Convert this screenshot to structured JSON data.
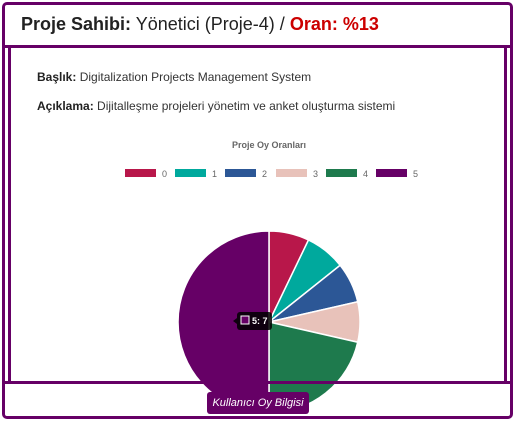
{
  "header": {
    "owner_label": "Proje Sahibi:",
    "owner_value": "Yönetici (Proje-4)",
    "separator": "/",
    "ratio_text": "Oran: %13"
  },
  "project": {
    "title_label": "Başlık:",
    "title_value": "Digitalization Projects Management System",
    "description_label": "Açıklama:",
    "description_value": "Dijitalleşme projeleri yönetim ve anket oluşturma sistemi"
  },
  "chart_data": {
    "type": "pie",
    "title": "Proje Oy Oranları",
    "legend_position": "top",
    "categories": [
      "0",
      "1",
      "2",
      "3",
      "4",
      "5"
    ],
    "values": [
      1,
      1,
      1,
      1,
      3,
      7
    ],
    "colors": [
      "#b8174a",
      "#00a99d",
      "#2c5796",
      "#e8c2ba",
      "#1e7a4d",
      "#660066"
    ],
    "tooltip": {
      "category": "5",
      "text": "5: 7"
    }
  },
  "footer": {
    "button_label": "Kullanıcı Oy Bilgisi"
  }
}
